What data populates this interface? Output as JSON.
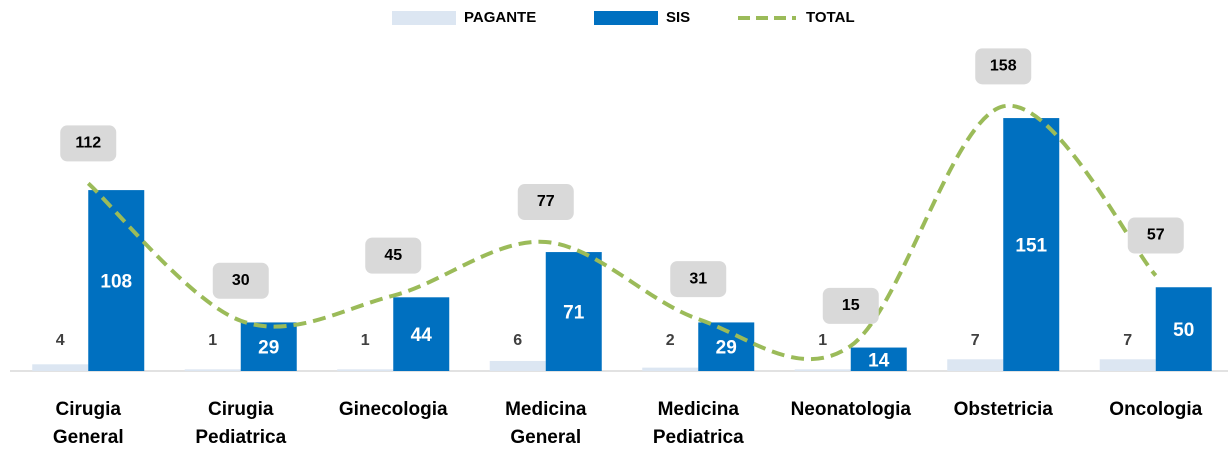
{
  "chart_data": {
    "type": "bar-line",
    "categories": [
      "Cirugia General",
      "Cirugia Pediatrica",
      "Ginecologia",
      "Medicina General",
      "Medicina Pediatrica",
      "Neonatologia",
      "Obstetricia",
      "Oncologia"
    ],
    "series": [
      {
        "name": "PAGANTE",
        "color": "#dce6f2",
        "values": [
          4,
          1,
          1,
          6,
          2,
          1,
          7,
          7
        ]
      },
      {
        "name": "SIS",
        "color": "#0070c0",
        "values": [
          108,
          29,
          44,
          71,
          29,
          14,
          151,
          50
        ]
      },
      {
        "name": "TOTAL",
        "color": "#9bbb59",
        "type": "line",
        "values": [
          112,
          30,
          45,
          77,
          31,
          15,
          158,
          57
        ]
      }
    ],
    "ylim": [
      0,
      180
    ],
    "legend": "top"
  }
}
